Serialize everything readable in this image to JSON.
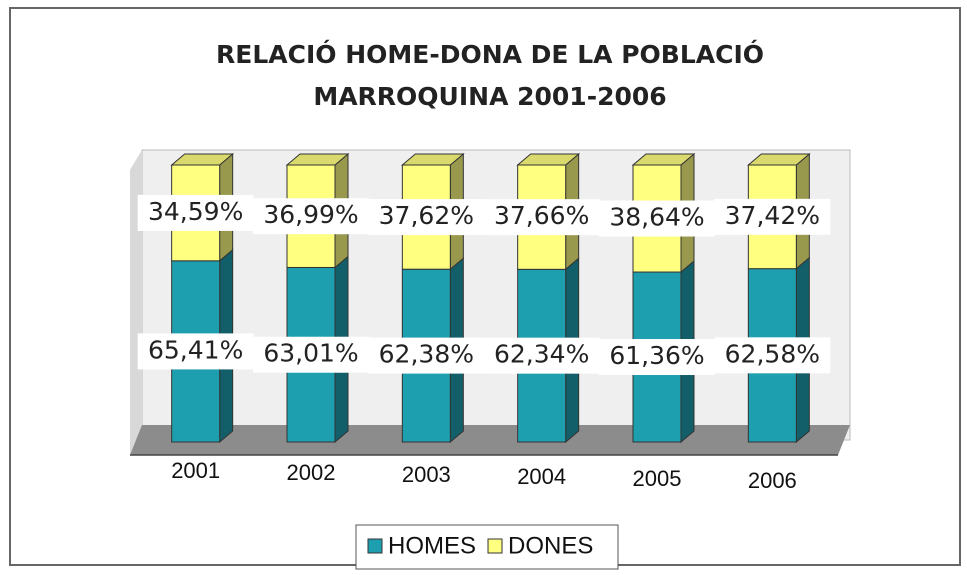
{
  "chart_data": {
    "type": "bar",
    "stacked": true,
    "title": "RELACIÓ HOME-DONA DE LA POBLACIÓ MARROQUINA 2001-2006",
    "categories": [
      "2001",
      "2002",
      "2003",
      "2004",
      "2005",
      "2006"
    ],
    "series": [
      {
        "name": "HOMES",
        "color": "#1e9fb0",
        "values": [
          65.41,
          63.01,
          62.38,
          62.34,
          61.36,
          62.58
        ],
        "value_labels": [
          "65,41%",
          "63,01%",
          "62,38%",
          "62,34%",
          "61,36%",
          "62,58%"
        ]
      },
      {
        "name": "DONES",
        "color": "#ffff80",
        "values": [
          34.59,
          36.99,
          37.62,
          37.66,
          38.64,
          37.42
        ],
        "value_labels": [
          "34,59%",
          "36,99%",
          "37,62%",
          "37,66%",
          "38,64%",
          "37,42%"
        ]
      }
    ],
    "legend": "bottom"
  }
}
